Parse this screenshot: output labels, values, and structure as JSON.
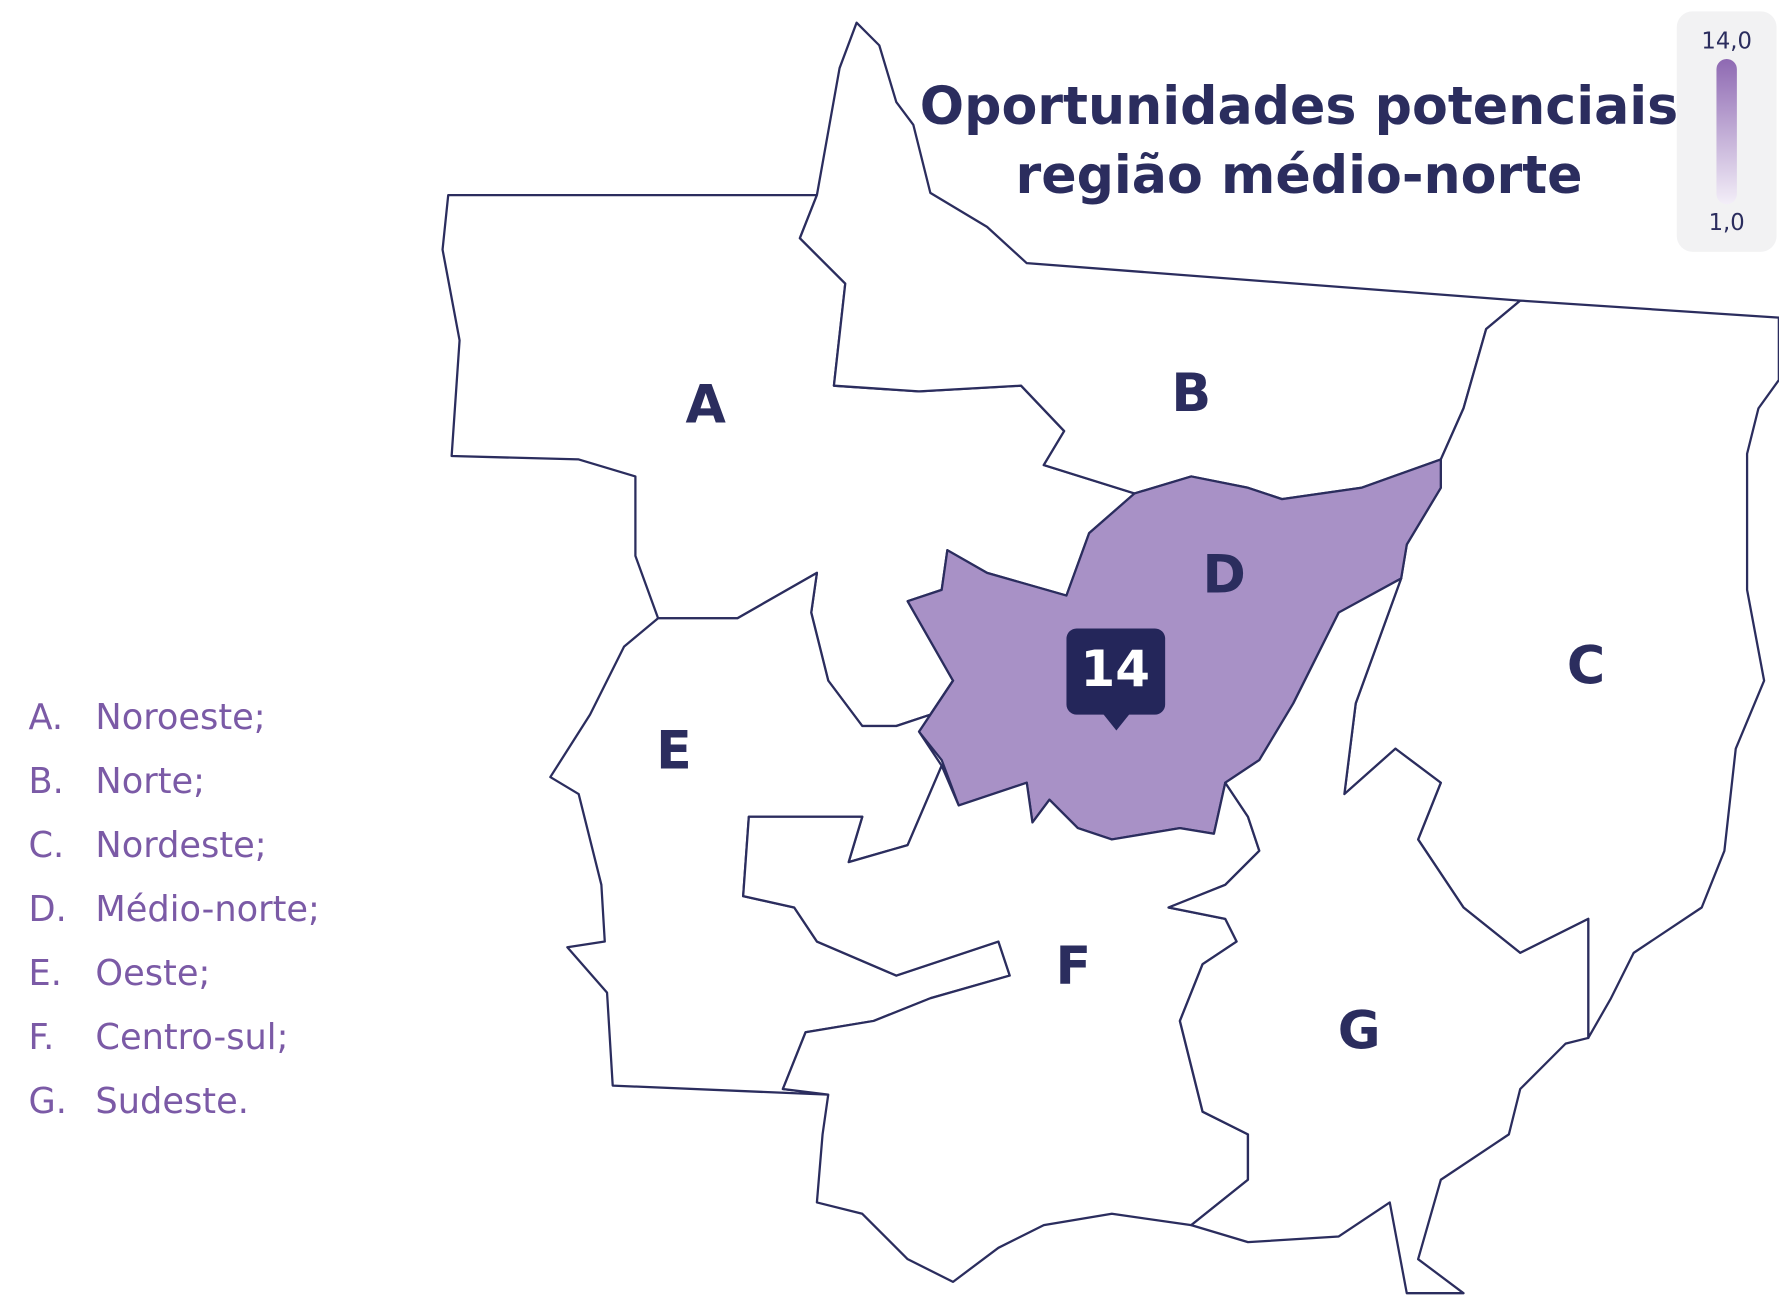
{
  "title_lines": [
    "Oportunidades potenciais",
    "região médio-norte"
  ],
  "color_scale": {
    "max": {
      "value": 14,
      "label": "14,0"
    },
    "min": {
      "value": 1,
      "label": "1,0"
    },
    "colors": [
      "#f3eef8",
      "#a891c6"
    ],
    "bar_colors": [
      "#f3eef8",
      "#8e69b2"
    ]
  },
  "regions": [
    {
      "letter": "A"
    },
    {
      "letter": "B"
    },
    {
      "letter": "C"
    },
    {
      "letter": "D",
      "value": 14
    },
    {
      "letter": "E"
    },
    {
      "letter": "F"
    },
    {
      "letter": "G"
    }
  ],
  "legend": [
    {
      "letter": "A.",
      "name": "Noroeste;"
    },
    {
      "letter": "B.",
      "name": "Norte;"
    },
    {
      "letter": "C.",
      "name": "Nordeste;"
    },
    {
      "letter": "D.",
      "name": "Médio-norte;"
    },
    {
      "letter": "E.",
      "name": "Oeste;"
    },
    {
      "letter": "F.",
      "name": "Centro-sul;"
    },
    {
      "letter": "G.",
      "name": "Sudeste."
    }
  ]
}
